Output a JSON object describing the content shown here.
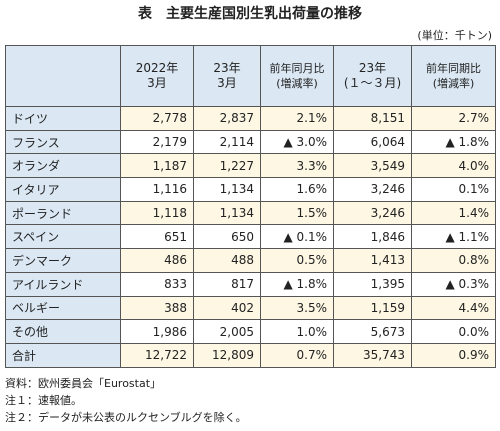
{
  "title": "表　主要生産国別生乳出荷量の推移",
  "unit": "(単位：千トン)",
  "table": {
    "header": [
      [
        "2022年",
        "3月"
      ],
      [
        "23年",
        "3月"
      ],
      [
        "前年同月比",
        "(増減率)"
      ],
      [
        "23年",
        "(１～３月)"
      ],
      [
        "前年同期比",
        "(増減率)"
      ]
    ],
    "rows": [
      [
        "ドイツ",
        "2,778",
        "2,837",
        "2.1%",
        "8,151",
        "2.7%"
      ],
      [
        "フランス",
        "2,179",
        "2,114",
        "▲ 3.0%",
        "6,064",
        "▲ 1.8%"
      ],
      [
        "オランダ",
        "1,187",
        "1,227",
        "3.3%",
        "3,549",
        "4.0%"
      ],
      [
        "イタリア",
        "1,116",
        "1,134",
        "1.6%",
        "3,246",
        "0.1%"
      ],
      [
        "ポーランド",
        "1,118",
        "1,134",
        "1.5%",
        "3,246",
        "1.4%"
      ],
      [
        "スペイン",
        "651",
        "650",
        "▲ 0.1%",
        "1,846",
        "▲ 1.1%"
      ],
      [
        "デンマーク",
        "486",
        "488",
        "0.5%",
        "1,413",
        "0.8%"
      ],
      [
        "アイルランド",
        "833",
        "817",
        "▲ 1.8%",
        "1,395",
        "▲ 0.3%"
      ],
      [
        "ベルギー",
        "388",
        "402",
        "3.5%",
        "1,159",
        "4.4%"
      ],
      [
        "その他",
        "1,986",
        "2,005",
        "1.0%",
        "5,673",
        "0.0%"
      ],
      [
        "合計",
        "12,722",
        "12,809",
        "0.7%",
        "35,743",
        "0.9%"
      ]
    ]
  },
  "notes": [
    "資料：欧州委員会「Eurostat」",
    "注１：速報値。",
    "注２：データが未公表のルクセンブルグを除く。"
  ]
}
